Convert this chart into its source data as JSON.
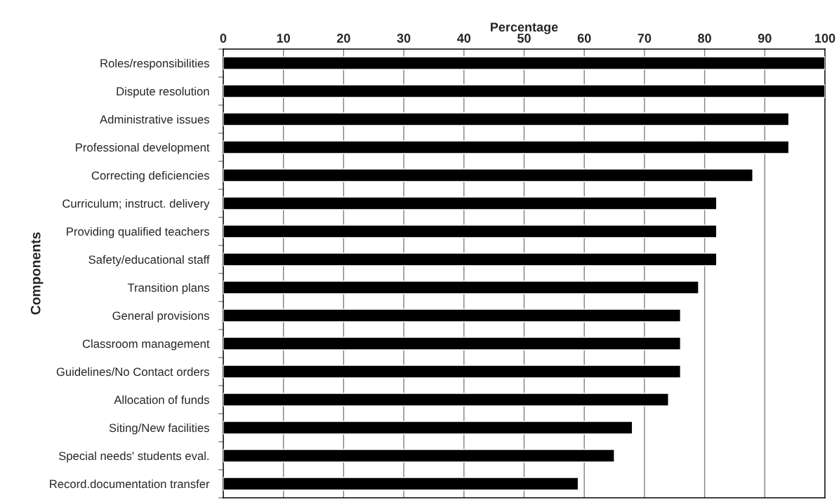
{
  "chart_data": {
    "type": "bar",
    "orientation": "horizontal",
    "xlabel": "Percentage",
    "ylabel": "Components",
    "categories": [
      "Roles/responsibilities",
      "Dispute resolution",
      "Administrative issues",
      "Professional development",
      "Correcting deficiencies",
      "Curriculum; instruct. delivery",
      "Providing qualified teachers",
      "Safety/educational staff",
      "Transition plans",
      "General provisions",
      "Classroom management",
      "Guidelines/No Contact orders",
      "Allocation of funds",
      "Siting/New facilities",
      "Special needs' students eval.",
      "Record.documentation transfer"
    ],
    "values": [
      100,
      100,
      94,
      94,
      88,
      82,
      82,
      82,
      79,
      76,
      76,
      76,
      74,
      68,
      65,
      59
    ],
    "color": "#000000",
    "xlim": [
      0,
      100
    ],
    "xticks": [
      0,
      10,
      20,
      30,
      40,
      50,
      60,
      70,
      80,
      90,
      100
    ],
    "grid": "x",
    "legend": false
  }
}
